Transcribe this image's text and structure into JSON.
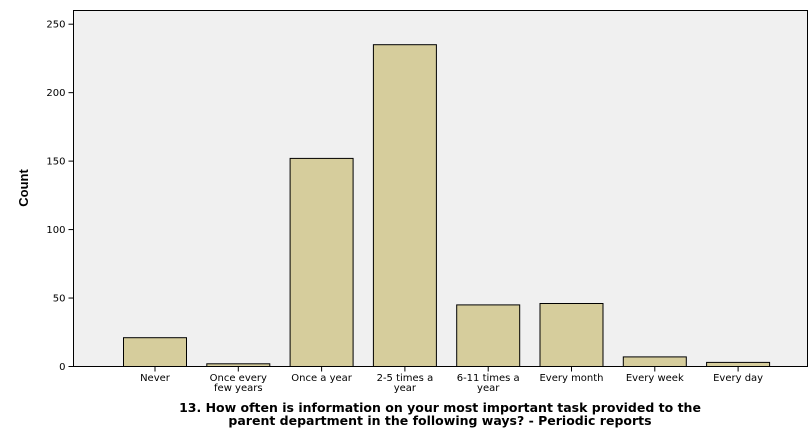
{
  "chart_data": {
    "type": "bar",
    "categories": [
      [
        "Never"
      ],
      [
        "Once every",
        "few years"
      ],
      [
        "Once a year"
      ],
      [
        "2-5 times a",
        "year"
      ],
      [
        "6-11 times a",
        "year"
      ],
      [
        "Every month"
      ],
      [
        "Every week"
      ],
      [
        "Every day"
      ]
    ],
    "values": [
      21,
      2,
      152,
      235,
      45,
      46,
      7,
      3
    ],
    "yticks": [
      0,
      50,
      100,
      150,
      200,
      250
    ],
    "ylim": [
      0,
      260
    ],
    "ylabel": "Count",
    "xlabel": [
      "13. How often is information on your most important task provided to the",
      "parent department in the following ways? - Periodic reports"
    ],
    "grid": false,
    "colors": {
      "bar_fill": "#d6cd9c",
      "plot_background": "#f0f0f0",
      "axis": "#000000"
    }
  }
}
